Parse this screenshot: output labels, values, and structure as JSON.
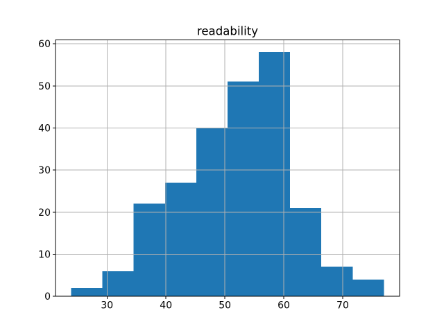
{
  "figure": {
    "title": "readability"
  },
  "chart_data": {
    "type": "bar",
    "subtype": "histogram",
    "title": "readability",
    "xlabel": "",
    "ylabel": "",
    "bin_edges": [
      23.9,
      29.21,
      34.52,
      39.83,
      45.14,
      50.45,
      55.76,
      61.07,
      66.38,
      71.69,
      77.0
    ],
    "values": [
      2,
      6,
      22,
      27,
      40,
      51,
      58,
      21,
      7,
      4
    ],
    "xticks": [
      30,
      40,
      50,
      60,
      70
    ],
    "yticks": [
      0,
      10,
      20,
      30,
      40,
      50,
      60
    ],
    "xlim": [
      21.25,
      79.66
    ],
    "ylim": [
      0,
      60.9
    ],
    "grid": true,
    "grid_over_bars": true,
    "legend": false,
    "bar_color": "#1f77b4",
    "grid_color": "#b0b0b0",
    "spine_color": "#000000",
    "text_color": "#000000",
    "background": "#ffffff"
  }
}
